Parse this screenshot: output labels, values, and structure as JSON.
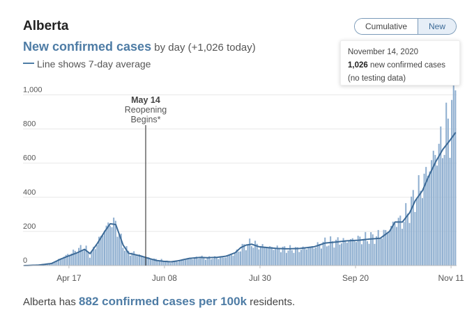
{
  "header": {
    "region": "Alberta",
    "subtitle_strong": "New confirmed cases",
    "subtitle_rest": " by day (+1,026 today)",
    "line_note": "Line shows 7-day average"
  },
  "toggle": {
    "cumulative_label": "Cumulative",
    "new_label": "New",
    "selected": "New"
  },
  "tooltip": {
    "date": "November 14, 2020",
    "count": "1,026",
    "count_suffix": " new confirmed cases",
    "note": "(no testing data)"
  },
  "annotation": {
    "date_label": "May 14",
    "line1": "Reopening",
    "line2": "Begins*"
  },
  "footer": {
    "prefix": "Alberta has ",
    "strong": "882 confirmed cases per 100k",
    "suffix": " residents."
  },
  "colors": {
    "bar": "#8fafd0",
    "line": "#3c6a97",
    "accent": "#4e7ca5",
    "grid": "#e8e8e8"
  },
  "chart_data": {
    "type": "bar",
    "xlabel": "",
    "ylabel": "",
    "ylim": [
      0,
      1026
    ],
    "yticks": [
      0,
      200,
      400,
      600,
      800,
      1000
    ],
    "ytick_labels": [
      "0",
      "200",
      "400",
      "600",
      "800",
      "1,000"
    ],
    "xticks": [
      "Apr 17",
      "Jun 08",
      "Jul 30",
      "Sep 20",
      "Nov 11"
    ],
    "grid": true,
    "series": [
      {
        "type": "bar",
        "anchors": [
          [
            0,
            0
          ],
          [
            8,
            3
          ],
          [
            15,
            12
          ],
          [
            20,
            40
          ],
          [
            24,
            65
          ],
          [
            29,
            90
          ],
          [
            33,
            110
          ],
          [
            36,
            60
          ],
          [
            40,
            130
          ],
          [
            44,
            210
          ],
          [
            47,
            250
          ],
          [
            50,
            245
          ],
          [
            54,
            120
          ],
          [
            57,
            80
          ],
          [
            60,
            70
          ],
          [
            64,
            55
          ],
          [
            68,
            45
          ],
          [
            72,
            35
          ],
          [
            76,
            30
          ],
          [
            80,
            20
          ],
          [
            84,
            25
          ],
          [
            90,
            40
          ],
          [
            96,
            48
          ],
          [
            100,
            45
          ],
          [
            105,
            45
          ],
          [
            110,
            50
          ],
          [
            115,
            70
          ],
          [
            118,
            100
          ],
          [
            121,
            120
          ],
          [
            124,
            130
          ],
          [
            128,
            115
          ],
          [
            133,
            108
          ],
          [
            138,
            100
          ],
          [
            144,
            95
          ],
          [
            150,
            95
          ],
          [
            158,
            110
          ],
          [
            164,
            135
          ],
          [
            170,
            140
          ],
          [
            176,
            145
          ],
          [
            182,
            155
          ],
          [
            188,
            160
          ],
          [
            194,
            175
          ],
          [
            199,
            210
          ],
          [
            202,
            255
          ],
          [
            206,
            260
          ],
          [
            210,
            330
          ],
          [
            213,
            400
          ],
          [
            217,
            470
          ],
          [
            220,
            560
          ],
          [
            224,
            650
          ],
          [
            228,
            720
          ],
          [
            232,
            850
          ],
          [
            235,
            1026
          ]
        ]
      },
      {
        "type": "line",
        "name": "7-day average",
        "anchors": [
          [
            0,
            0
          ],
          [
            8,
            3
          ],
          [
            15,
            12
          ],
          [
            20,
            38
          ],
          [
            24,
            55
          ],
          [
            29,
            75
          ],
          [
            33,
            95
          ],
          [
            36,
            70
          ],
          [
            40,
            130
          ],
          [
            44,
            200
          ],
          [
            47,
            245
          ],
          [
            50,
            240
          ],
          [
            54,
            120
          ],
          [
            57,
            72
          ],
          [
            60,
            65
          ],
          [
            64,
            55
          ],
          [
            68,
            42
          ],
          [
            72,
            30
          ],
          [
            76,
            25
          ],
          [
            80,
            22
          ],
          [
            84,
            28
          ],
          [
            90,
            42
          ],
          [
            96,
            48
          ],
          [
            100,
            46
          ],
          [
            105,
            48
          ],
          [
            110,
            55
          ],
          [
            115,
            75
          ],
          [
            118,
            105
          ],
          [
            121,
            120
          ],
          [
            124,
            125
          ],
          [
            128,
            110
          ],
          [
            133,
            105
          ],
          [
            138,
            100
          ],
          [
            144,
            98
          ],
          [
            150,
            100
          ],
          [
            158,
            110
          ],
          [
            164,
            132
          ],
          [
            170,
            138
          ],
          [
            176,
            145
          ],
          [
            182,
            148
          ],
          [
            188,
            155
          ],
          [
            194,
            160
          ],
          [
            199,
            200
          ],
          [
            202,
            255
          ],
          [
            206,
            255
          ],
          [
            210,
            310
          ],
          [
            213,
            380
          ],
          [
            217,
            440
          ],
          [
            220,
            515
          ],
          [
            224,
            605
          ],
          [
            228,
            680
          ],
          [
            232,
            735
          ],
          [
            235,
            780
          ]
        ]
      }
    ],
    "annotation": {
      "x_label": "May 14",
      "text": "Reopening Begins*"
    }
  }
}
